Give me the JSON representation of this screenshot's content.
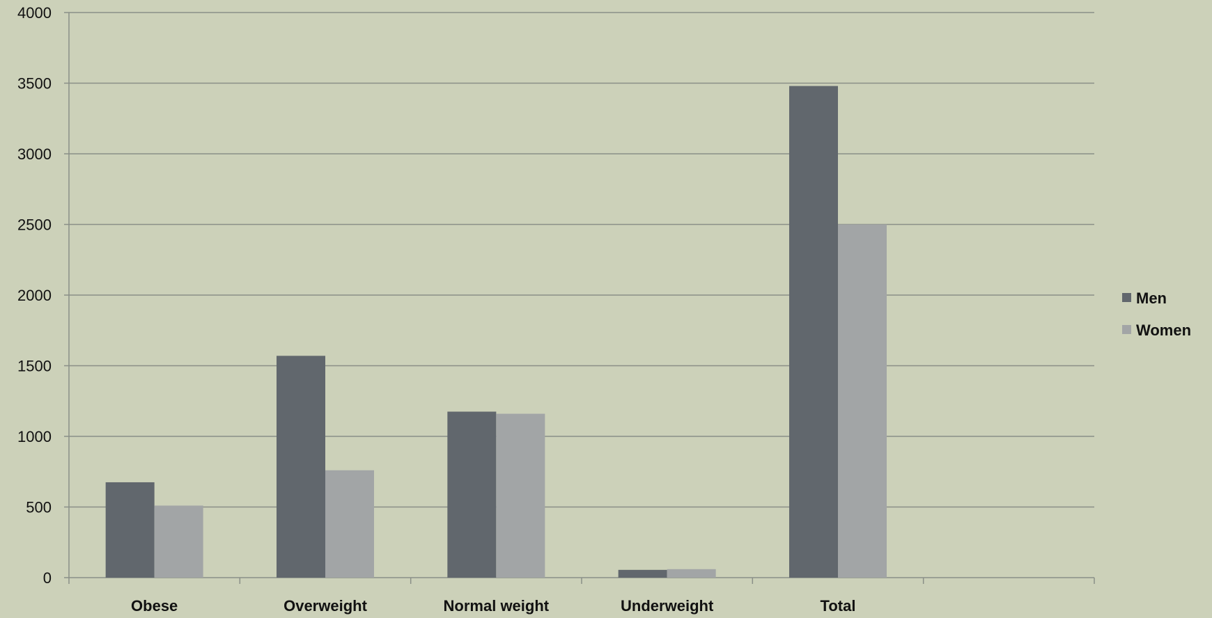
{
  "chart_data": {
    "type": "bar",
    "categories": [
      "Obese",
      "Overweight",
      "Normal weight",
      "Underweight",
      "Total",
      ""
    ],
    "series": [
      {
        "name": "Men",
        "values": [
          675,
          1570,
          1175,
          55,
          3480,
          null
        ],
        "color": "#61676d"
      },
      {
        "name": "Women",
        "values": [
          510,
          760,
          1160,
          60,
          2500,
          null
        ],
        "color": "#a2a5a6"
      }
    ],
    "y_ticks": [
      "0",
      "500",
      "1000",
      "1500",
      "2000",
      "2500",
      "3000",
      "3500",
      "4000"
    ],
    "ylim": [
      0,
      4000
    ],
    "grid": true,
    "legend": "right",
    "title": "",
    "xlabel": "",
    "ylabel": "",
    "background_color": "#ccd1b9",
    "grid_color": "#8a8f88"
  }
}
